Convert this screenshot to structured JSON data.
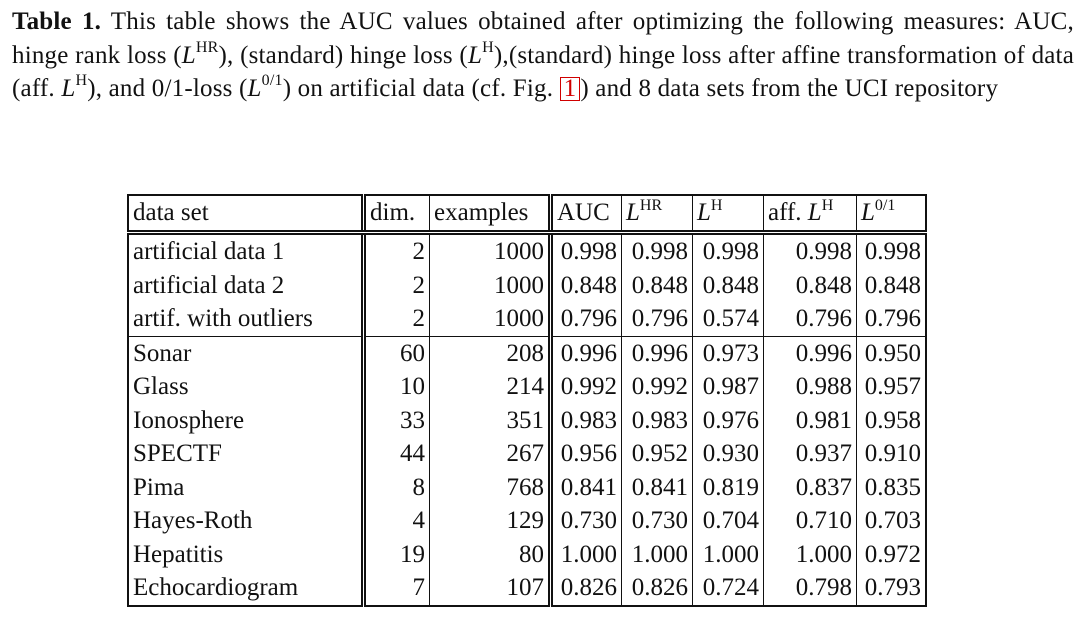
{
  "caption": {
    "label": "Table 1.",
    "part1": " This table shows the AUC values obtained after optimizing the following measures: AUC, hinge rank loss (",
    "part2": "), (standard) hinge loss (",
    "part3": "),(standard) hinge loss after affine transformation of data (aff. ",
    "part4": "), and 0/1-loss (",
    "part5": ") on artificial data (cf. Fig. ",
    "fig_ref": "1",
    "part6": ") and 8 data sets from the UCI repository",
    "sym_L": "L",
    "sup_HR": "HR",
    "sup_H": "H",
    "sup_01": "0/1"
  },
  "table": {
    "headers": {
      "name": "data set",
      "dim": "dim.",
      "examples": "examples",
      "auc": "AUC",
      "hr_L": "L",
      "hr_sup": "HR",
      "h_L": "L",
      "h_sup": "H",
      "aff_prefix": "aff. ",
      "aff_L": "L",
      "aff_sup": "H",
      "zo_L": "L",
      "zo_sup": "0/1"
    },
    "group1": [
      {
        "name": "artificial data 1",
        "dim": "2",
        "examples": "1000",
        "auc": "0.998",
        "hr": "0.998",
        "h": "0.998",
        "aff": "0.998",
        "zo": "0.998"
      },
      {
        "name": "artificial data 2",
        "dim": "2",
        "examples": "1000",
        "auc": "0.848",
        "hr": "0.848",
        "h": "0.848",
        "aff": "0.848",
        "zo": "0.848"
      },
      {
        "name": "artif. with outliers",
        "dim": "2",
        "examples": "1000",
        "auc": "0.796",
        "hr": "0.796",
        "h": "0.574",
        "aff": "0.796",
        "zo": "0.796"
      }
    ],
    "group2": [
      {
        "name": "Sonar",
        "dim": "60",
        "examples": "208",
        "auc": "0.996",
        "hr": "0.996",
        "h": "0.973",
        "aff": "0.996",
        "zo": "0.950"
      },
      {
        "name": "Glass",
        "dim": "10",
        "examples": "214",
        "auc": "0.992",
        "hr": "0.992",
        "h": "0.987",
        "aff": "0.988",
        "zo": "0.957"
      },
      {
        "name": "Ionosphere",
        "dim": "33",
        "examples": "351",
        "auc": "0.983",
        "hr": "0.983",
        "h": "0.976",
        "aff": "0.981",
        "zo": "0.958"
      },
      {
        "name": "SPECTF",
        "dim": "44",
        "examples": "267",
        "auc": "0.956",
        "hr": "0.952",
        "h": "0.930",
        "aff": "0.937",
        "zo": "0.910"
      },
      {
        "name": "Pima",
        "dim": "8",
        "examples": "768",
        "auc": "0.841",
        "hr": "0.841",
        "h": "0.819",
        "aff": "0.837",
        "zo": "0.835"
      },
      {
        "name": "Hayes-Roth",
        "dim": "4",
        "examples": "129",
        "auc": "0.730",
        "hr": "0.730",
        "h": "0.704",
        "aff": "0.710",
        "zo": "0.703"
      },
      {
        "name": "Hepatitis",
        "dim": "19",
        "examples": "80",
        "auc": "1.000",
        "hr": "1.000",
        "h": "1.000",
        "aff": "1.000",
        "zo": "0.972"
      },
      {
        "name": "Echocardiogram",
        "dim": "7",
        "examples": "107",
        "auc": "0.826",
        "hr": "0.826",
        "h": "0.724",
        "aff": "0.798",
        "zo": "0.793"
      }
    ]
  }
}
